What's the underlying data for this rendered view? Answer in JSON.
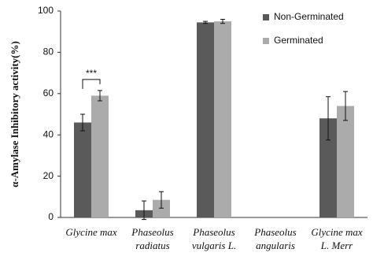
{
  "chart_data": {
    "type": "bar",
    "ylabel": "α-Amylase Inhibitory activity(%)",
    "categories": [
      [
        "Glycine max"
      ],
      [
        "Phaseolus",
        "radiatus"
      ],
      [
        "Phaseolus",
        "vulgaris L."
      ],
      [
        "Phaseolus",
        "angularis"
      ],
      [
        "Glycine max",
        "L. Merr"
      ]
    ],
    "series": [
      {
        "name": "Non-Germinated",
        "color": "#5a5a5a",
        "values": [
          46,
          3.5,
          94.5,
          null,
          48
        ],
        "errors": [
          4,
          4.5,
          0.5,
          null,
          10.5
        ]
      },
      {
        "name": "Germinated",
        "color": "#ababab",
        "values": [
          59,
          8.5,
          95,
          null,
          54
        ],
        "errors": [
          2.5,
          4,
          1,
          null,
          7
        ]
      }
    ],
    "annotation": "***",
    "ylim": [
      0,
      100
    ],
    "yticks": [
      0,
      20,
      40,
      60,
      80,
      100
    ],
    "grid": false,
    "legend": "top-right"
  }
}
